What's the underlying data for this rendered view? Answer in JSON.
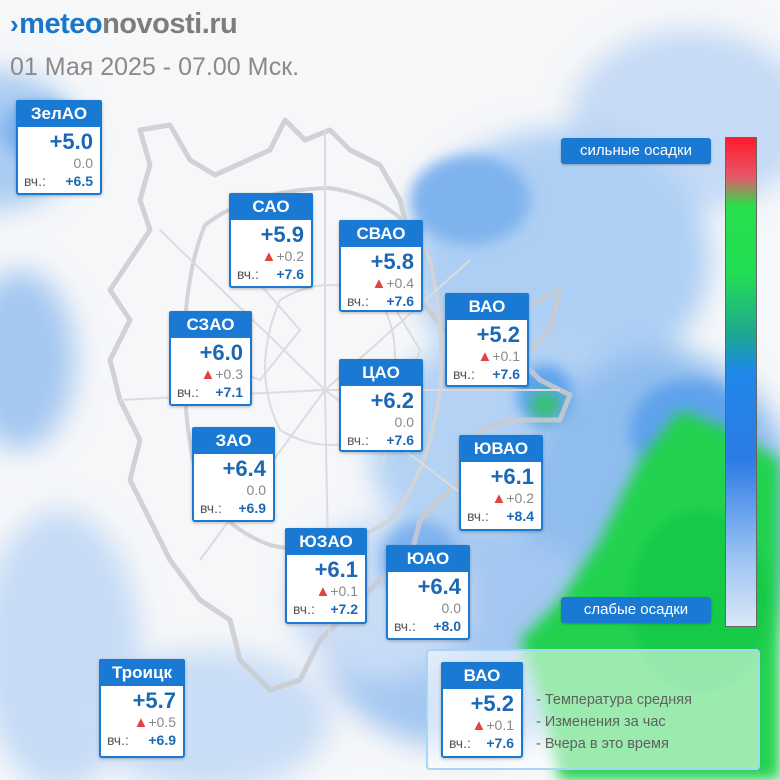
{
  "header": {
    "brand_part1": "meteo",
    "brand_part2": "novosti.ru",
    "subtitle": "01 Мая 2025 - 07.00 Мск."
  },
  "districts": [
    {
      "name": "ЗелАО",
      "temp": "+5.0",
      "change": "0.0",
      "up": false,
      "yesterday_label": "вч.:",
      "yesterday": "+6.5"
    },
    {
      "name": "САО",
      "temp": "+5.9",
      "change": "+0.2",
      "up": true,
      "yesterday_label": "вч.:",
      "yesterday": "+7.6"
    },
    {
      "name": "СВАО",
      "temp": "+5.8",
      "change": "+0.4",
      "up": true,
      "yesterday_label": "вч.:",
      "yesterday": "+7.6"
    },
    {
      "name": "ВАО",
      "temp": "+5.2",
      "change": "+0.1",
      "up": true,
      "yesterday_label": "вч.:",
      "yesterday": "+7.6"
    },
    {
      "name": "СЗАО",
      "temp": "+6.0",
      "change": "+0.3",
      "up": true,
      "yesterday_label": "вч.:",
      "yesterday": "+7.1"
    },
    {
      "name": "ЦАО",
      "temp": "+6.2",
      "change": "0.0",
      "up": false,
      "yesterday_label": "вч.:",
      "yesterday": "+7.6"
    },
    {
      "name": "ЗАО",
      "temp": "+6.4",
      "change": "0.0",
      "up": false,
      "yesterday_label": "вч.:",
      "yesterday": "+6.9"
    },
    {
      "name": "ЮВАО",
      "temp": "+6.1",
      "change": "+0.2",
      "up": true,
      "yesterday_label": "вч.:",
      "yesterday": "+8.4"
    },
    {
      "name": "ЮЗАО",
      "temp": "+6.1",
      "change": "+0.1",
      "up": true,
      "yesterday_label": "вч.:",
      "yesterday": "+7.2"
    },
    {
      "name": "ЮАО",
      "temp": "+6.4",
      "change": "0.0",
      "up": false,
      "yesterday_label": "вч.:",
      "yesterday": "+8.0"
    },
    {
      "name": "Троицк",
      "temp": "+5.7",
      "change": "+0.5",
      "up": true,
      "yesterday_label": "вч.:",
      "yesterday": "+6.9"
    }
  ],
  "precip_scale": {
    "top_label": "сильные осадки",
    "bottom_label": "слабые осадки",
    "colors": [
      "#ff1a2c",
      "#28e04a",
      "#1e88e8",
      "#dbe7f6"
    ]
  },
  "legend": {
    "sample": {
      "name": "ВАО",
      "temp": "+5.2",
      "change": "+0.1",
      "up": true,
      "yesterday_label": "вч.:",
      "yesterday": "+7.6"
    },
    "line1": "- Температура средняя",
    "line2": "- Изменения за час",
    "line3": "- Вчера в это время"
  },
  "colors": {
    "accent": "#1a7ad3",
    "temperature": "#1c68b4",
    "up_arrow": "#e3433f",
    "rain_light": "#5fa3ec",
    "rain_moderate": "#23d250"
  }
}
